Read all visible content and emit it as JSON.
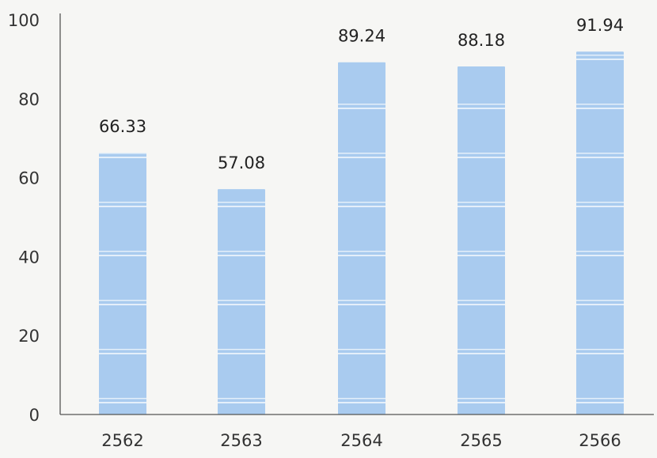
{
  "chart_data": {
    "type": "bar",
    "categories": [
      "2562",
      "2563",
      "2564",
      "2565",
      "2566"
    ],
    "values": [
      66.33,
      57.08,
      89.24,
      88.18,
      91.94
    ],
    "data_labels": [
      "66.33",
      "57.08",
      "89.24",
      "88.18",
      "91.94"
    ],
    "title": "",
    "xlabel": "",
    "ylabel": "",
    "ylim": [
      0,
      100
    ],
    "yticks": [
      "0",
      "20",
      "40",
      "60",
      "80",
      "100"
    ],
    "grid": false,
    "legend": "none",
    "bar_color": "#a9cbef",
    "stripe_color": "#e4effa",
    "axis_color": "#555555"
  }
}
